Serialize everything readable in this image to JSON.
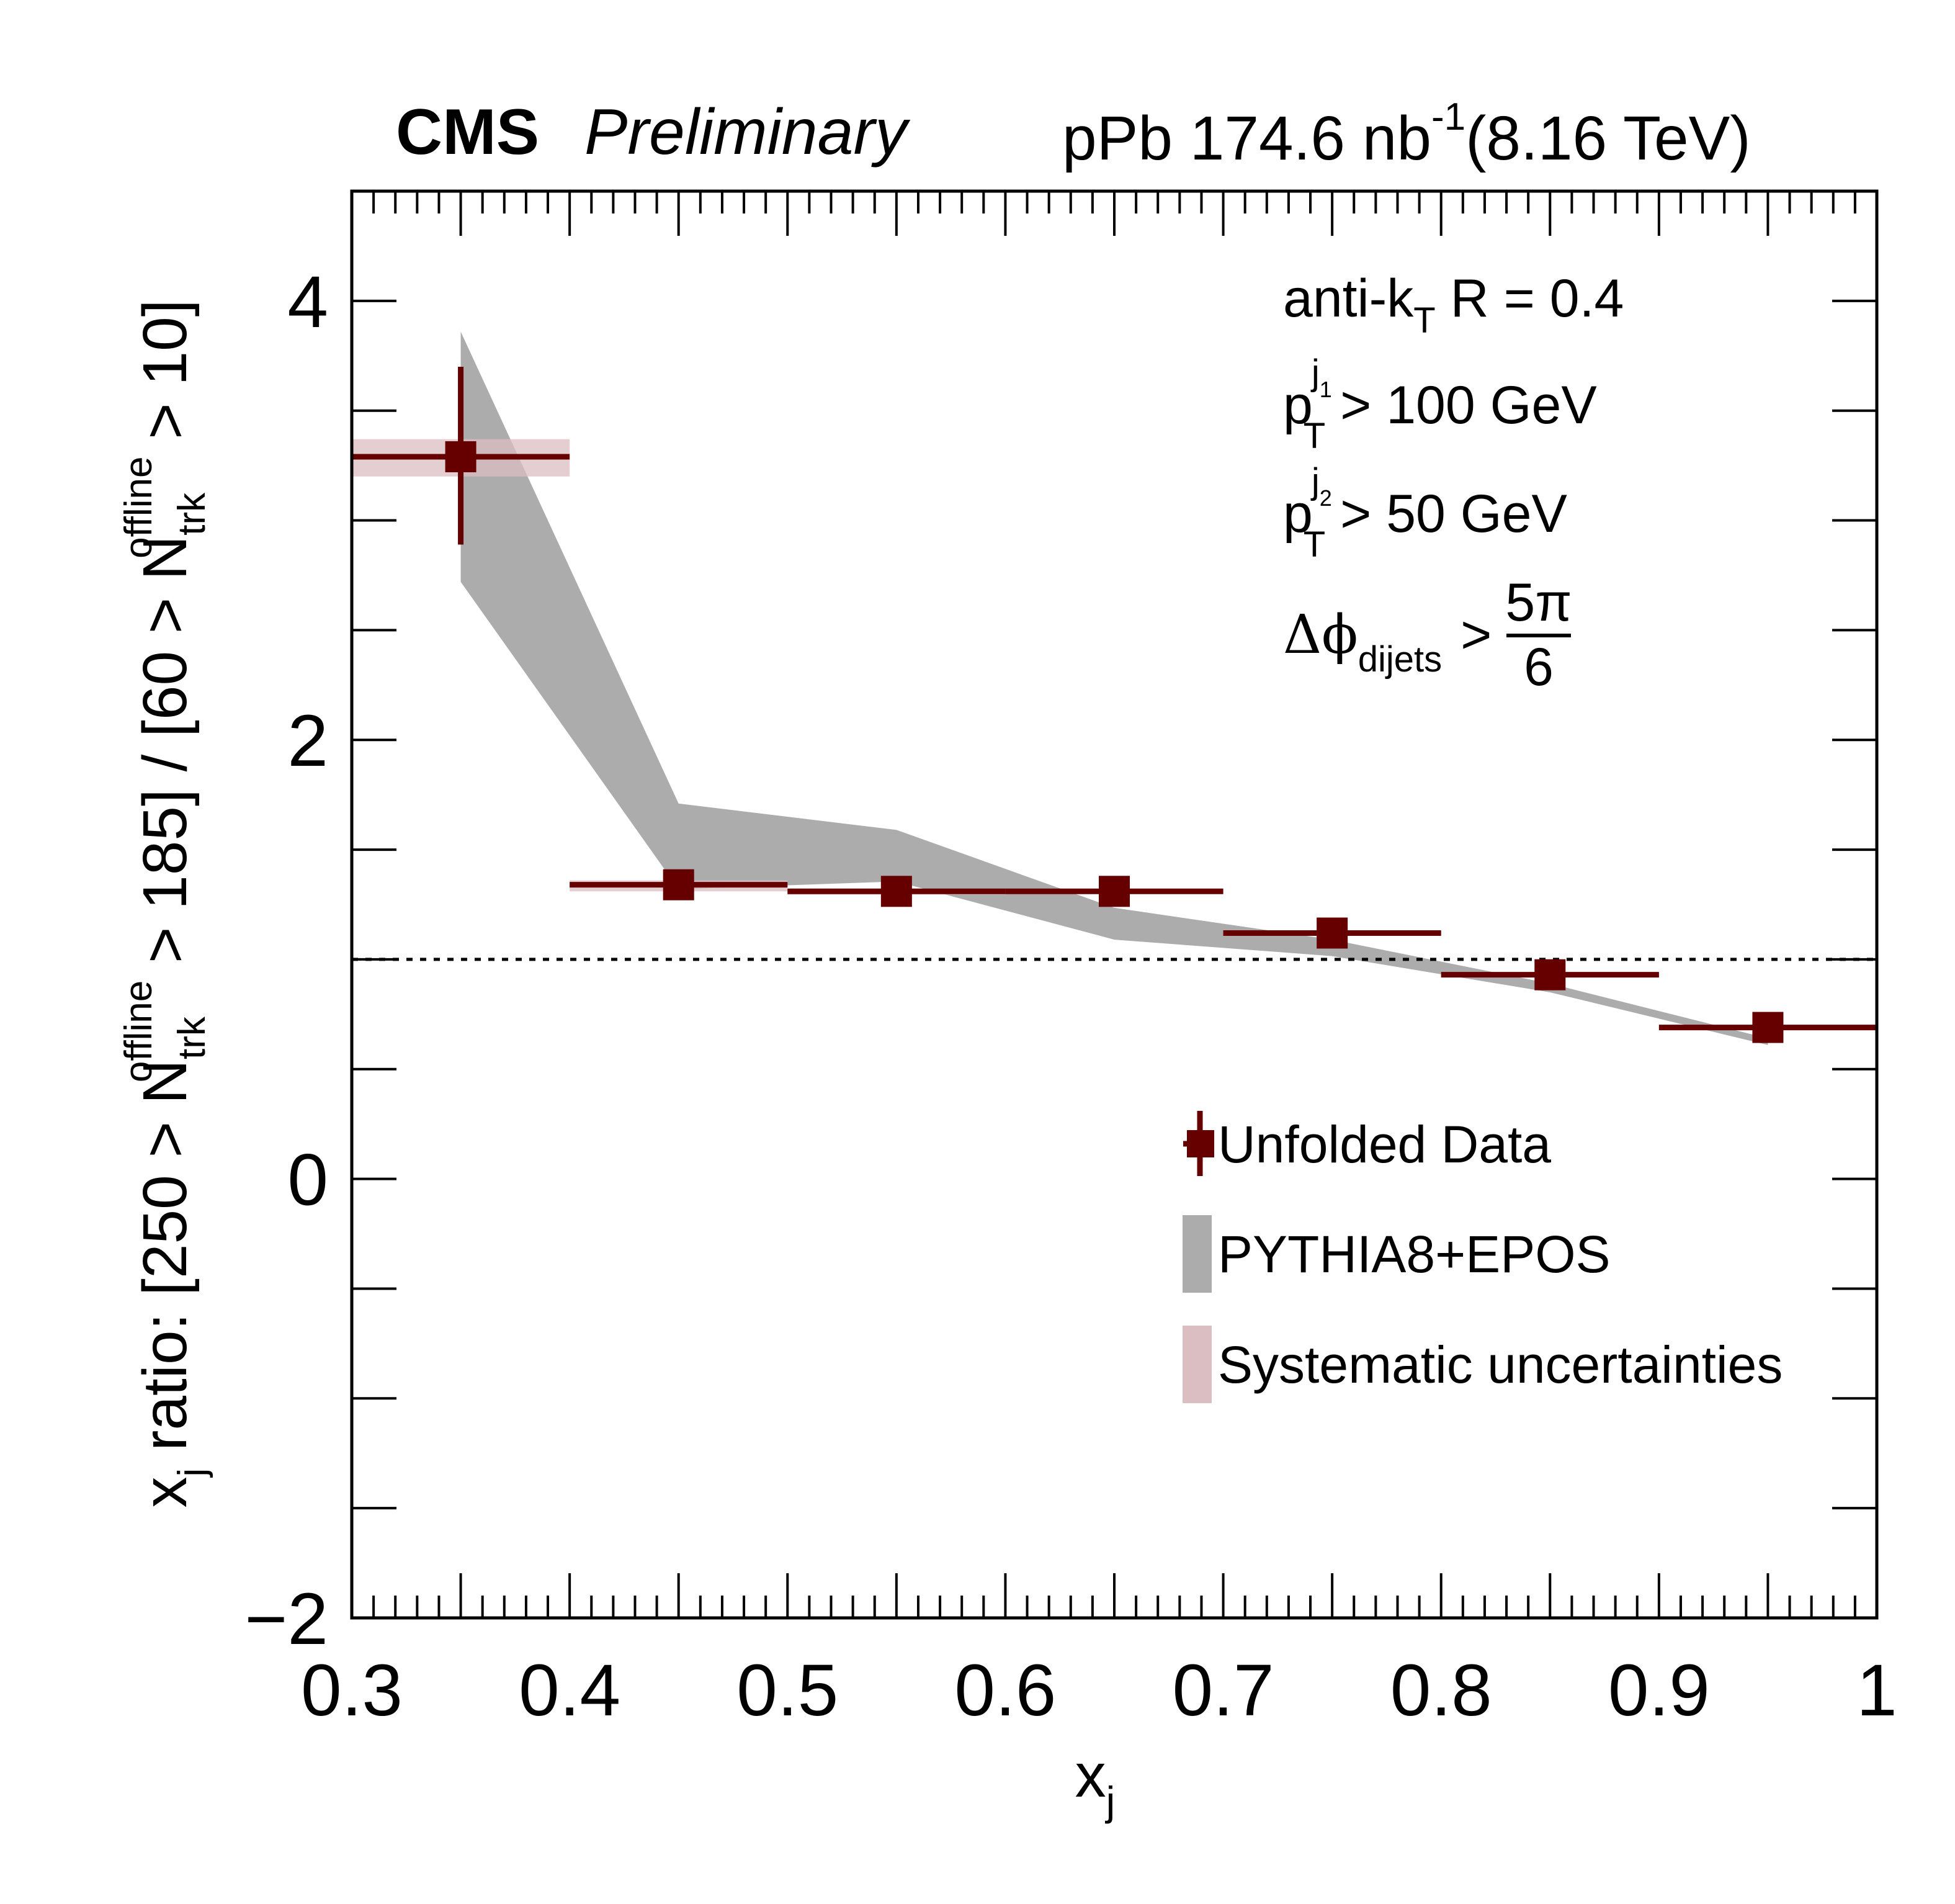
{
  "header": {
    "experiment": "CMS",
    "status": "Preliminary",
    "lumi_prefix": "pPb 174.6 nb",
    "lumi_exp": "-1",
    "energy": "(8.16 TeV)"
  },
  "annotations": {
    "jet_algo_main": "anti-k",
    "jet_algo_sub": "T",
    "jet_algo_rest": " R = 0.4",
    "pt1_p": "p",
    "pt1_sub": "T",
    "pt1_sup": "j",
    "pt1_supsub": "1",
    "pt1_rest": " > 100 GeV",
    "pt2_p": "p",
    "pt2_sub": "T",
    "pt2_sup": "j",
    "pt2_supsub": "2",
    "pt2_rest": " > 50 GeV",
    "dphi_main": "Δϕ",
    "dphi_sub": "dijets",
    "dphi_gt": ">",
    "dphi_num": "5π",
    "dphi_den": "6"
  },
  "legend": {
    "position": "right-middle",
    "entries": [
      {
        "label": "Unfolded Data",
        "style": "marker-errorbar"
      },
      {
        "label": "PYTHIA8+EPOS",
        "style": "filled-box"
      },
      {
        "label": "Systematic uncertainties",
        "style": "filled-box"
      }
    ]
  },
  "colors": {
    "data": "#660000",
    "model_band": "#acacac",
    "systematic_band": "#dbbec1",
    "reference_line": "#000000"
  },
  "chart_data": {
    "type": "scatter",
    "title": "",
    "xlabel": "x_j",
    "ylabel": "x_j ratio: [250 > N_trk^offline > 185] / [60 > N_trk^offline > 10]",
    "xlim": [
      0.3,
      1.0
    ],
    "ylim": [
      -2,
      4.5
    ],
    "xticks": [
      0.3,
      0.4,
      0.5,
      0.6,
      0.7,
      0.8,
      0.9,
      1.0
    ],
    "xtick_labels": [
      "0.3",
      "0.4",
      "0.5",
      "0.6",
      "0.7",
      "0.8",
      "0.9",
      "1"
    ],
    "yticks": [
      -2,
      0,
      2,
      4
    ],
    "ytick_labels": [
      "−2",
      "0",
      "2",
      "4"
    ],
    "grid": false,
    "reference_line_y": 1.0,
    "series": [
      {
        "name": "Unfolded Data",
        "x": [
          0.35,
          0.45,
          0.55,
          0.65,
          0.75,
          0.85,
          0.95
        ],
        "y": [
          3.29,
          1.34,
          1.31,
          1.31,
          1.12,
          0.93,
          0.69
        ],
        "xerr": [
          0.05,
          0.05,
          0.05,
          0.05,
          0.05,
          0.05,
          0.05
        ],
        "yerr_low": [
          0.4,
          0.02,
          0.02,
          0.02,
          0.02,
          0.02,
          0.02
        ],
        "yerr_high": [
          0.41,
          0.02,
          0.02,
          0.02,
          0.02,
          0.02,
          0.02
        ]
      },
      {
        "name": "Systematic uncertainties",
        "x": [
          0.35,
          0.45,
          0.55,
          0.65,
          0.75,
          0.85,
          0.95
        ],
        "low": [
          3.2,
          1.31,
          1.295,
          1.3,
          1.11,
          0.92,
          0.68
        ],
        "high": [
          3.37,
          1.36,
          1.32,
          1.32,
          1.13,
          0.94,
          0.7
        ]
      },
      {
        "name": "PYTHIA8+EPOS",
        "x": [
          0.35,
          0.45,
          0.55,
          0.65,
          0.75,
          0.85,
          0.95
        ],
        "low": [
          2.72,
          1.32,
          1.355,
          1.09,
          1.015,
          0.85,
          0.61
        ],
        "high": [
          3.86,
          1.71,
          1.59,
          1.235,
          1.09,
          0.89,
          0.64
        ]
      }
    ]
  }
}
